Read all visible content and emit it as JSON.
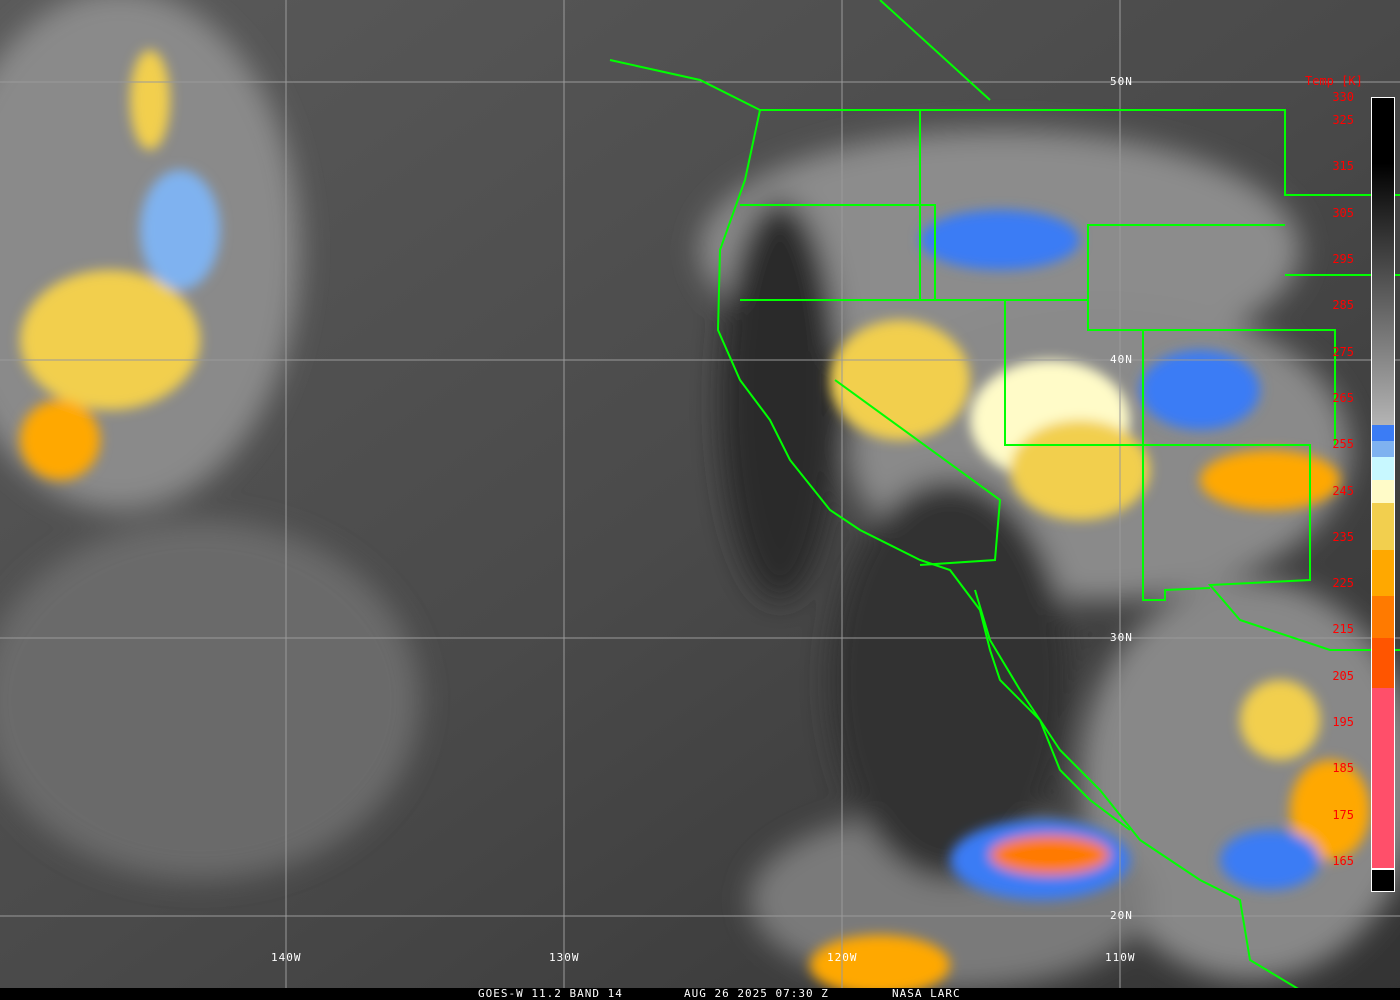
{
  "footer": {
    "satellite": "GOES-W 11.2 BAND 14",
    "datetime": "AUG 26 2025 07:30 Z",
    "credit": "NASA LARC"
  },
  "latitude_labels": [
    "50N",
    "40N",
    "30N",
    "20N"
  ],
  "longitude_labels": [
    "140W",
    "130W",
    "120W",
    "110W"
  ],
  "colorbar": {
    "title": "Temp [K]",
    "ticks": [
      "330",
      "325",
      "315",
      "305",
      "295",
      "285",
      "275",
      "265",
      "255",
      "245",
      "235",
      "225",
      "215",
      "205",
      "195",
      "185",
      "175",
      "165"
    ],
    "colors": {
      "cold_pink": "#ff4f6a",
      "red_orange": "#ff5500",
      "orange": "#ff7a00",
      "amber": "#ffa800",
      "yellow": "#f2cf4e",
      "pale_yellow": "#fffbc8",
      "light_cyan": "#c8f8ff",
      "light_blue": "#7fb2f0",
      "blue": "#3b7cf5"
    }
  },
  "colors": {
    "borders": "#00ff00",
    "gridlines": "#9a9a9a",
    "label_red": "#ff0000"
  }
}
